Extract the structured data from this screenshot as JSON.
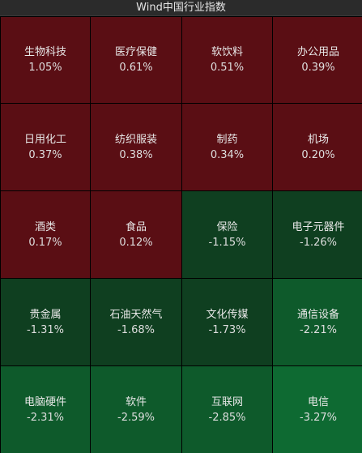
{
  "title": "Wind中国行业指数",
  "colors": {
    "up_strong": "#5a0e14",
    "down_dark": "#0f3f20",
    "down_mid": "#0e5a2b",
    "down_bright": "#0e6a32"
  },
  "tiles": [
    {
      "name": "生物科技",
      "change": "1.05%",
      "tone": "up_strong"
    },
    {
      "name": "医疗保健",
      "change": "0.61%",
      "tone": "up_strong"
    },
    {
      "name": "软饮料",
      "change": "0.51%",
      "tone": "up_strong"
    },
    {
      "name": "办公用品",
      "change": "0.39%",
      "tone": "up_strong"
    },
    {
      "name": "日用化工",
      "change": "0.37%",
      "tone": "up_strong"
    },
    {
      "name": "纺织服装",
      "change": "0.38%",
      "tone": "up_strong"
    },
    {
      "name": "制药",
      "change": "0.34%",
      "tone": "up_strong"
    },
    {
      "name": "机场",
      "change": "0.20%",
      "tone": "up_strong"
    },
    {
      "name": "酒类",
      "change": "0.17%",
      "tone": "up_strong"
    },
    {
      "name": "食品",
      "change": "0.12%",
      "tone": "up_strong"
    },
    {
      "name": "保险",
      "change": "-1.15%",
      "tone": "down_dark"
    },
    {
      "name": "电子元器件",
      "change": "-1.26%",
      "tone": "down_dark"
    },
    {
      "name": "贵金属",
      "change": "-1.31%",
      "tone": "down_dark"
    },
    {
      "name": "石油天然气",
      "change": "-1.68%",
      "tone": "down_dark"
    },
    {
      "name": "文化传媒",
      "change": "-1.73%",
      "tone": "down_dark"
    },
    {
      "name": "通信设备",
      "change": "-2.21%",
      "tone": "down_mid"
    },
    {
      "name": "电脑硬件",
      "change": "-2.31%",
      "tone": "down_mid"
    },
    {
      "name": "软件",
      "change": "-2.59%",
      "tone": "down_mid"
    },
    {
      "name": "互联网",
      "change": "-2.85%",
      "tone": "down_mid"
    },
    {
      "name": "电信",
      "change": "-3.27%",
      "tone": "down_bright"
    }
  ]
}
